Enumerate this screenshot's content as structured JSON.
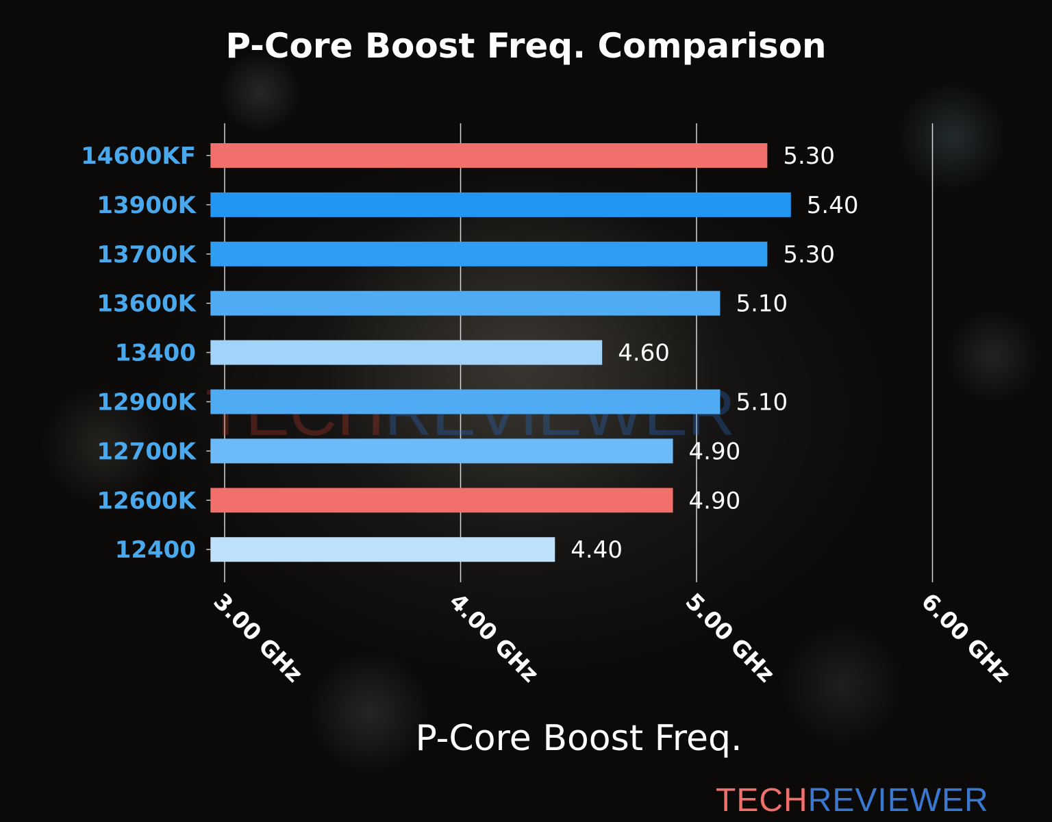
{
  "chart_data": {
    "type": "bar",
    "orientation": "horizontal",
    "title": "P-Core Boost Freq. Comparison",
    "xlabel": "P-Core Boost Freq.",
    "ylabel": "",
    "xlim": [
      2.94,
      6.0
    ],
    "xticks": [
      3.0,
      4.0,
      5.0,
      6.0
    ],
    "xtick_labels": [
      "3.00 GHz",
      "4.00 GHz",
      "5.00 GHz",
      "6.00 GHz"
    ],
    "grid": "vertical",
    "categories": [
      "14600KF",
      "13900K",
      "13700K",
      "13600K",
      "13400",
      "12900K",
      "12700K",
      "12600K",
      "12400"
    ],
    "values": [
      5.3,
      5.4,
      5.3,
      5.1,
      4.6,
      5.1,
      4.9,
      4.9,
      4.4
    ],
    "value_labels": [
      "5.30",
      "5.40",
      "5.30",
      "5.10",
      "4.60",
      "5.10",
      "4.90",
      "4.90",
      "4.40"
    ],
    "colors": [
      "#f2706c",
      "#2196f3",
      "#2f9df2",
      "#4eabf4",
      "#a2d3f9",
      "#4eabf4",
      "#6cbaf7",
      "#f2706c",
      "#bde0fb"
    ]
  },
  "watermark": {
    "part1": "TECH",
    "part2": "REVIEWER"
  },
  "logo": {
    "part1": "TECH",
    "part2": "REVIEWER",
    "color1": "#f2706c",
    "color2": "#3a78d0"
  }
}
